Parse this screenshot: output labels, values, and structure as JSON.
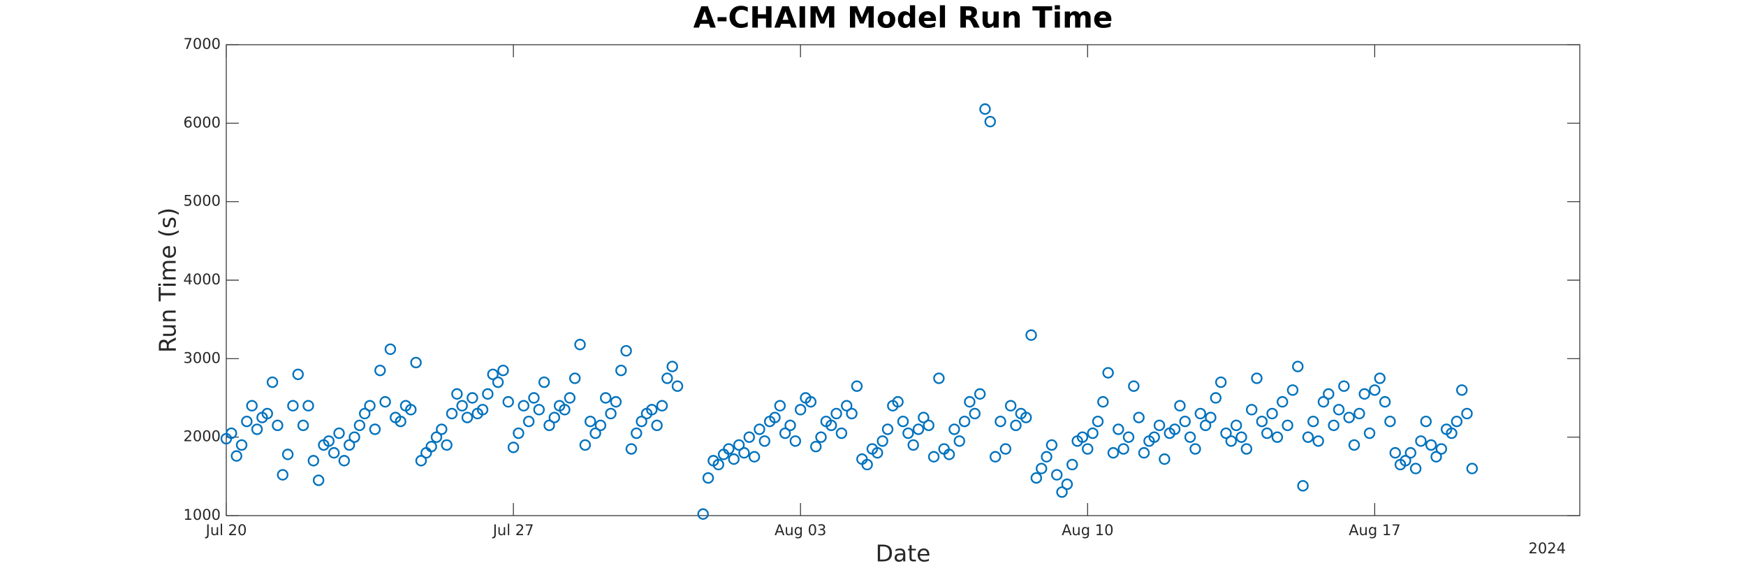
{
  "chart_data": {
    "type": "scatter",
    "title": "A-CHAIM Model Run Time",
    "x_label": "Date",
    "y_label": "Run Time (s)",
    "x_secondary_label": "2024",
    "xlim": [
      "2024-07-20",
      "2024-08-22"
    ],
    "xticks": [
      {
        "value": "2024-07-20",
        "label": "Jul 20"
      },
      {
        "value": "2024-07-27",
        "label": "Jul 27"
      },
      {
        "value": "2024-08-03",
        "label": "Aug 03"
      },
      {
        "value": "2024-08-10",
        "label": "Aug 10"
      },
      {
        "value": "2024-08-17",
        "label": "Aug 17"
      }
    ],
    "ylim": [
      1000,
      7000
    ],
    "yticks": [
      1000,
      2000,
      3000,
      4000,
      5000,
      6000,
      7000
    ],
    "grid": false,
    "series": [
      {
        "color": "#0072bd",
        "x": [
          "2024-07-20T00:00",
          "2024-07-20T03:00",
          "2024-07-20T06:00",
          "2024-07-20T09:00",
          "2024-07-20T12:00",
          "2024-07-20T15:00",
          "2024-07-20T18:00",
          "2024-07-20T21:00",
          "2024-07-21T00:00",
          "2024-07-21T03:00",
          "2024-07-21T06:00",
          "2024-07-21T09:00",
          "2024-07-21T12:00",
          "2024-07-21T15:00",
          "2024-07-21T18:00",
          "2024-07-21T21:00",
          "2024-07-22T00:00",
          "2024-07-22T03:00",
          "2024-07-22T06:00",
          "2024-07-22T09:00",
          "2024-07-22T12:00",
          "2024-07-22T15:00",
          "2024-07-22T18:00",
          "2024-07-22T21:00",
          "2024-07-23T00:00",
          "2024-07-23T03:00",
          "2024-07-23T06:00",
          "2024-07-23T09:00",
          "2024-07-23T12:00",
          "2024-07-23T15:00",
          "2024-07-23T18:00",
          "2024-07-23T21:00",
          "2024-07-24T00:00",
          "2024-07-24T03:00",
          "2024-07-24T06:00",
          "2024-07-24T09:00",
          "2024-07-24T12:00",
          "2024-07-24T15:00",
          "2024-07-24T18:00",
          "2024-07-24T21:00",
          "2024-07-25T00:00",
          "2024-07-25T03:00",
          "2024-07-25T06:00",
          "2024-07-25T09:00",
          "2024-07-25T12:00",
          "2024-07-25T15:00",
          "2024-07-25T18:00",
          "2024-07-25T21:00",
          "2024-07-26T00:00",
          "2024-07-26T03:00",
          "2024-07-26T06:00",
          "2024-07-26T09:00",
          "2024-07-26T12:00",
          "2024-07-26T15:00",
          "2024-07-26T18:00",
          "2024-07-26T21:00",
          "2024-07-27T00:00",
          "2024-07-27T03:00",
          "2024-07-27T06:00",
          "2024-07-27T09:00",
          "2024-07-27T12:00",
          "2024-07-27T15:00",
          "2024-07-27T18:00",
          "2024-07-27T21:00",
          "2024-07-28T00:00",
          "2024-07-28T03:00",
          "2024-07-28T06:00",
          "2024-07-28T09:00",
          "2024-07-28T12:00",
          "2024-07-28T15:00",
          "2024-07-28T18:00",
          "2024-07-28T21:00",
          "2024-07-29T00:00",
          "2024-07-29T03:00",
          "2024-07-29T06:00",
          "2024-07-29T09:00",
          "2024-07-29T12:00",
          "2024-07-29T15:00",
          "2024-07-29T18:00",
          "2024-07-29T21:00",
          "2024-07-30T00:00",
          "2024-07-30T03:00",
          "2024-07-30T06:00",
          "2024-07-30T09:00",
          "2024-07-30T12:00",
          "2024-07-30T15:00",
          "2024-07-30T18:00",
          "2024-07-30T21:00",
          "2024-07-31T00:00",
          "2024-07-31T15:00",
          "2024-07-31T18:00",
          "2024-07-31T21:00",
          "2024-08-01T00:00",
          "2024-08-01T03:00",
          "2024-08-01T06:00",
          "2024-08-01T09:00",
          "2024-08-01T12:00",
          "2024-08-01T15:00",
          "2024-08-01T18:00",
          "2024-08-01T21:00",
          "2024-08-02T00:00",
          "2024-08-02T03:00",
          "2024-08-02T06:00",
          "2024-08-02T09:00",
          "2024-08-02T12:00",
          "2024-08-02T15:00",
          "2024-08-02T18:00",
          "2024-08-02T21:00",
          "2024-08-03T00:00",
          "2024-08-03T03:00",
          "2024-08-03T06:00",
          "2024-08-03T09:00",
          "2024-08-03T12:00",
          "2024-08-03T15:00",
          "2024-08-03T18:00",
          "2024-08-03T21:00",
          "2024-08-04T00:00",
          "2024-08-04T03:00",
          "2024-08-04T06:00",
          "2024-08-04T09:00",
          "2024-08-04T12:00",
          "2024-08-04T15:00",
          "2024-08-04T18:00",
          "2024-08-04T21:00",
          "2024-08-05T00:00",
          "2024-08-05T03:00",
          "2024-08-05T06:00",
          "2024-08-05T09:00",
          "2024-08-05T12:00",
          "2024-08-05T15:00",
          "2024-08-05T18:00",
          "2024-08-05T21:00",
          "2024-08-06T00:00",
          "2024-08-06T03:00",
          "2024-08-06T06:00",
          "2024-08-06T09:00",
          "2024-08-06T12:00",
          "2024-08-06T15:00",
          "2024-08-06T18:00",
          "2024-08-06T21:00",
          "2024-08-07T00:00",
          "2024-08-07T03:00",
          "2024-08-07T06:00",
          "2024-08-07T09:00",
          "2024-08-07T12:00",
          "2024-08-07T15:00",
          "2024-08-07T18:00",
          "2024-08-07T21:00",
          "2024-08-08T00:00",
          "2024-08-08T03:00",
          "2024-08-08T06:00",
          "2024-08-08T09:00",
          "2024-08-08T12:00",
          "2024-08-08T15:00",
          "2024-08-08T18:00",
          "2024-08-08T21:00",
          "2024-08-09T00:00",
          "2024-08-09T03:00",
          "2024-08-09T06:00",
          "2024-08-09T09:00",
          "2024-08-09T12:00",
          "2024-08-09T15:00",
          "2024-08-09T18:00",
          "2024-08-09T21:00",
          "2024-08-10T00:00",
          "2024-08-10T03:00",
          "2024-08-10T06:00",
          "2024-08-10T09:00",
          "2024-08-10T12:00",
          "2024-08-10T15:00",
          "2024-08-10T18:00",
          "2024-08-10T21:00",
          "2024-08-11T00:00",
          "2024-08-11T03:00",
          "2024-08-11T06:00",
          "2024-08-11T09:00",
          "2024-08-11T12:00",
          "2024-08-11T15:00",
          "2024-08-11T18:00",
          "2024-08-11T21:00",
          "2024-08-12T00:00",
          "2024-08-12T03:00",
          "2024-08-12T06:00",
          "2024-08-12T09:00",
          "2024-08-12T12:00",
          "2024-08-12T15:00",
          "2024-08-12T18:00",
          "2024-08-12T21:00",
          "2024-08-13T00:00",
          "2024-08-13T03:00",
          "2024-08-13T06:00",
          "2024-08-13T09:00",
          "2024-08-13T12:00",
          "2024-08-13T15:00",
          "2024-08-13T18:00",
          "2024-08-13T21:00",
          "2024-08-14T00:00",
          "2024-08-14T03:00",
          "2024-08-14T06:00",
          "2024-08-14T09:00",
          "2024-08-14T12:00",
          "2024-08-14T15:00",
          "2024-08-14T18:00",
          "2024-08-14T21:00",
          "2024-08-15T00:00",
          "2024-08-15T03:00",
          "2024-08-15T06:00",
          "2024-08-15T09:00",
          "2024-08-15T12:00",
          "2024-08-15T15:00",
          "2024-08-15T18:00",
          "2024-08-15T21:00",
          "2024-08-16T00:00",
          "2024-08-16T03:00",
          "2024-08-16T06:00",
          "2024-08-16T09:00",
          "2024-08-16T12:00",
          "2024-08-16T15:00",
          "2024-08-16T18:00",
          "2024-08-16T21:00",
          "2024-08-17T00:00",
          "2024-08-17T03:00",
          "2024-08-17T06:00",
          "2024-08-17T09:00",
          "2024-08-17T12:00",
          "2024-08-17T15:00",
          "2024-08-17T18:00",
          "2024-08-17T21:00",
          "2024-08-18T00:00",
          "2024-08-18T03:00",
          "2024-08-18T06:00",
          "2024-08-18T09:00",
          "2024-08-18T12:00",
          "2024-08-18T15:00",
          "2024-08-18T18:00",
          "2024-08-18T21:00",
          "2024-08-19T00:00",
          "2024-08-19T03:00",
          "2024-08-19T06:00",
          "2024-08-19T09:00"
        ],
        "values": [
          1980,
          2050,
          1760,
          1900,
          2200,
          2400,
          2100,
          2250,
          2300,
          2700,
          2150,
          1520,
          1780,
          2400,
          2800,
          2150,
          2400,
          1700,
          1450,
          1900,
          1950,
          1800,
          2050,
          1700,
          1900,
          2000,
          2150,
          2300,
          2400,
          2100,
          2850,
          2450,
          3120,
          2250,
          2200,
          2400,
          2350,
          2950,
          1700,
          1800,
          1880,
          2000,
          2100,
          1900,
          2300,
          2550,
          2400,
          2250,
          2500,
          2300,
          2350,
          2550,
          2800,
          2700,
          2850,
          2450,
          1870,
          2050,
          2400,
          2200,
          2500,
          2350,
          2700,
          2150,
          2250,
          2400,
          2350,
          2500,
          2750,
          3180,
          1900,
          2200,
          2050,
          2150,
          2500,
          2300,
          2450,
          2850,
          3100,
          1850,
          2050,
          2200,
          2300,
          2350,
          2150,
          2400,
          2750,
          2900,
          2650,
          1020,
          1480,
          1700,
          1650,
          1780,
          1850,
          1720,
          1900,
          1800,
          2000,
          1750,
          2100,
          1950,
          2200,
          2250,
          2400,
          2050,
          2150,
          1950,
          2350,
          2500,
          2450,
          1880,
          2000,
          2200,
          2150,
          2300,
          2050,
          2400,
          2300,
          2650,
          1720,
          1650,
          1850,
          1800,
          1950,
          2100,
          2400,
          2450,
          2200,
          2050,
          1900,
          2100,
          2250,
          2150,
          1750,
          2750,
          1850,
          1780,
          2100,
          1950,
          2200,
          2450,
          2300,
          2550,
          6180,
          6020,
          1750,
          2200,
          1850,
          2400,
          2150,
          2300,
          2250,
          3300,
          1480,
          1600,
          1750,
          1900,
          1520,
          1300,
          1400,
          1650,
          1950,
          2000,
          1850,
          2050,
          2200,
          2450,
          2820,
          1800,
          2100,
          1850,
          2000,
          2650,
          2250,
          1800,
          1950,
          2000,
          2150,
          1720,
          2050,
          2100,
          2400,
          2200,
          2000,
          1850,
          2300,
          2150,
          2250,
          2500,
          2700,
          2050,
          1950,
          2150,
          2000,
          1850,
          2350,
          2750,
          2200,
          2050,
          2300,
          2000,
          2450,
          2150,
          2600,
          2900,
          1380,
          2000,
          2200,
          1950,
          2450,
          2550,
          2150,
          2350,
          2650,
          2250,
          1900,
          2300,
          2550,
          2050,
          2600,
          2750,
          2450,
          2200,
          1800,
          1650,
          1700,
          1800,
          1600,
          1950,
          2200,
          1900,
          1750,
          1850,
          2100,
          2050,
          2200,
          2600,
          2300,
          1600
        ]
      }
    ]
  }
}
